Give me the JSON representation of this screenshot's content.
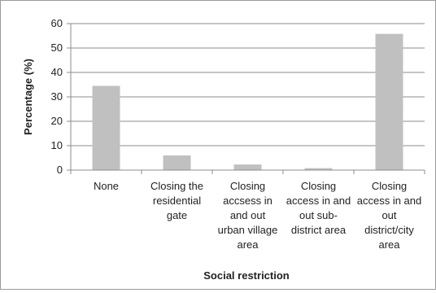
{
  "chart_data": {
    "type": "bar",
    "title": "",
    "xlabel": "Social restriction",
    "ylabel": "Percentage (%)",
    "ylim": [
      0,
      60
    ],
    "yticks": [
      0,
      10,
      20,
      30,
      40,
      50,
      60
    ],
    "grid": true,
    "legend": "none",
    "bar_color": "#c0c0c0",
    "grid_color": "#8c8c8c",
    "categories": [
      [
        "None"
      ],
      [
        "Closing the",
        "residential",
        "gate"
      ],
      [
        "Closing",
        "accsess in",
        "and out",
        "urban village",
        "area"
      ],
      [
        "Closing",
        "access in and",
        "out sub-",
        "district area"
      ],
      [
        "Closing",
        "access in and",
        "out",
        "district/city",
        "area"
      ]
    ],
    "values": [
      34.5,
      6,
      2.3,
      0.8,
      55.8
    ]
  }
}
